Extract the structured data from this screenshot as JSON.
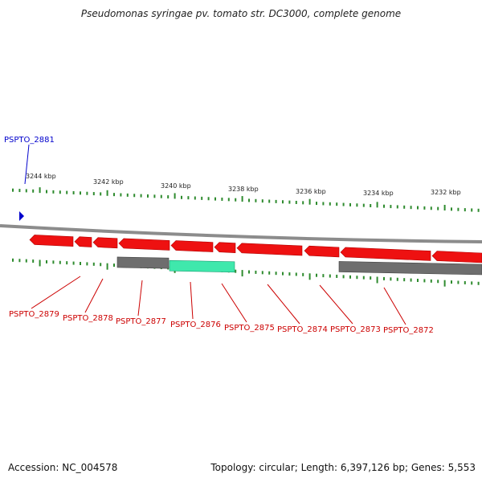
{
  "title": "Pseudomonas syringae pv. tomato str. DC3000, complete genome",
  "footer": {
    "accession": "Accession: NC_004578",
    "stats": "Topology: circular; Length: 6,397,126 bp; Genes: 5,553"
  },
  "colors": {
    "tick": "#2e8b2e",
    "backbone": "#8c8c8c",
    "gene_forward": "#ee1111",
    "gene_reverse_gray": "#6e6e6e",
    "gene_highlight": "#3fe8ac",
    "label_red": "#cc0000",
    "label_blue": "#0000cc"
  },
  "scale_labels": [
    "3244 kbp",
    "3242 kbp",
    "3240 kbp",
    "3238 kbp",
    "3236 kbp",
    "3234 kbp",
    "3232 kbp"
  ],
  "marker": {
    "label": "PSPTO_2881",
    "icon": "blue-triangle-icon"
  },
  "gene_labels": [
    "PSPTO_2879",
    "PSPTO_2878",
    "PSPTO_2877",
    "PSPTO_2876",
    "PSPTO_2875",
    "PSPTO_2874",
    "PSPTO_2873",
    "PSPTO_2872"
  ]
}
